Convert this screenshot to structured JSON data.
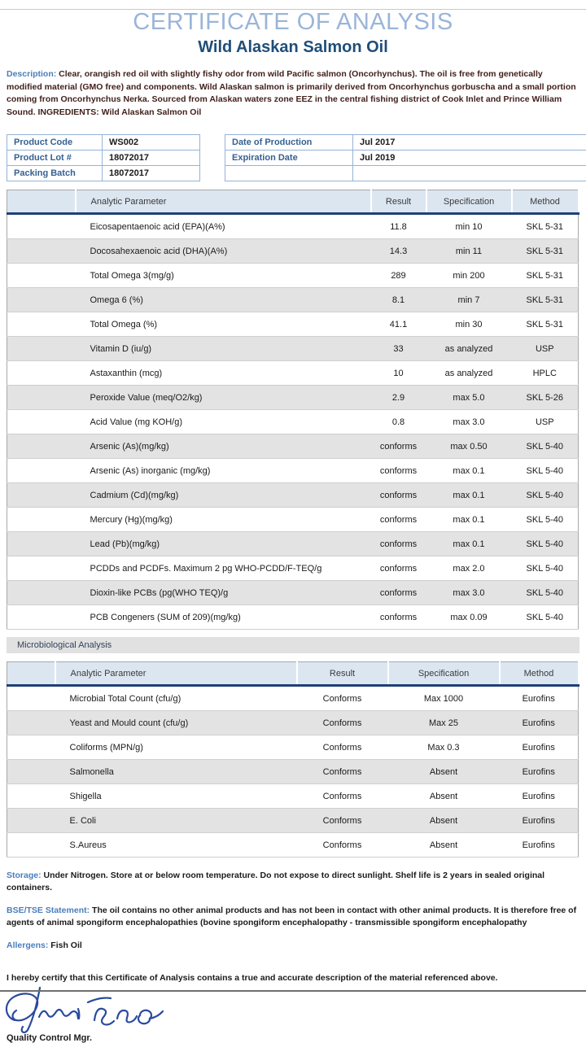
{
  "header": {
    "title": "CERTIFICATE OF ANALYSIS",
    "subtitle": "Wild Alaskan Salmon Oil"
  },
  "description": {
    "label": "Description:",
    "text": " Clear, orangish red oil with slightly fishy odor from wild Pacific salmon (Oncorhynchus). The oil is free from genetically modified material (GMO free) and components. Wild Alaskan salmon is primarily derived from Oncorhynchus gorbuscha and a small portion coming from Oncorhynchus Nerka. Sourced from Alaskan waters zone EEZ in the central fishing district of Cook Inlet and Prince William Sound. INGREDIENTS: Wild Alaskan Salmon Oil"
  },
  "product_info": {
    "left_rows": [
      {
        "label": "Product Code",
        "value": "WS002"
      },
      {
        "label": "Product Lot #",
        "value": "18072017"
      },
      {
        "label": "Packing Batch",
        "value": "18072017"
      }
    ],
    "right_rows": [
      {
        "label": "Date of Production",
        "value": "Jul 2017"
      },
      {
        "label": "Expiration Date",
        "value": "Jul 2019"
      },
      {
        "label": "",
        "value": ""
      }
    ]
  },
  "analysis_table": {
    "headers": [
      "Analytic Parameter",
      "Result",
      "Specification",
      "Method"
    ],
    "rows": [
      [
        "Eicosapentaenoic acid (EPA)(A%)",
        "11.8",
        "min 10",
        "SKL 5-31"
      ],
      [
        "Docosahexaenoic acid (DHA)(A%)",
        "14.3",
        "min 11",
        "SKL 5-31"
      ],
      [
        "Total Omega 3(mg/g)",
        "289",
        "min 200",
        "SKL 5-31"
      ],
      [
        "Omega 6 (%)",
        "8.1",
        "min 7",
        "SKL 5-31"
      ],
      [
        "Total Omega (%)",
        "41.1",
        "min 30",
        "SKL 5-31"
      ],
      [
        "Vitamin D (iu/g)",
        "33",
        "as analyzed",
        "USP"
      ],
      [
        "Astaxanthin (mcg)",
        "10",
        "as analyzed",
        "HPLC"
      ],
      [
        "Peroxide Value (meq/O2/kg)",
        "2.9",
        "max 5.0",
        "SKL 5-26"
      ],
      [
        "Acid Value (mg KOH/g)",
        "0.8",
        "max 3.0",
        "USP"
      ],
      [
        "Arsenic (As)(mg/kg)",
        "conforms",
        "max 0.50",
        "SKL 5-40"
      ],
      [
        "Arsenic (As) inorganic (mg/kg)",
        "conforms",
        "max 0.1",
        "SKL 5-40"
      ],
      [
        "Cadmium (Cd)(mg/kg)",
        "conforms",
        "max 0.1",
        "SKL 5-40"
      ],
      [
        "Mercury (Hg)(mg/kg)",
        "conforms",
        "max 0.1",
        "SKL 5-40"
      ],
      [
        "Lead (Pb)(mg/kg)",
        "conforms",
        "max 0.1",
        "SKL 5-40"
      ],
      [
        "PCDDs and PCDFs. Maximum 2 pg WHO-PCDD/F-TEQ/g",
        "conforms",
        "max 2.0",
        "SKL 5-40"
      ],
      [
        "Dioxin-like PCBs (pg(WHO TEQ)/g",
        "conforms",
        "max 3.0",
        "SKL 5-40"
      ],
      [
        "PCB Congeners (SUM of 209)(mg/kg)",
        "conforms",
        "max 0.09",
        "SKL 5-40"
      ]
    ]
  },
  "micro_section": {
    "label": "Microbiological Analysis"
  },
  "micro_table": {
    "headers": [
      "Analytic Parameter",
      "Result",
      "Specification",
      "Method"
    ],
    "rows": [
      [
        "Microbial Total Count (cfu/g)",
        "Conforms",
        "Max 1000",
        "Eurofins"
      ],
      [
        "Yeast and Mould count (cfu/g)",
        "Conforms",
        "Max 25",
        "Eurofins"
      ],
      [
        "Coliforms (MPN/g)",
        "Conforms",
        "Max 0.3",
        "Eurofins"
      ],
      [
        "Salmonella",
        "Conforms",
        "Absent",
        "Eurofins"
      ],
      [
        "Shigella",
        "Conforms",
        "Absent",
        "Eurofins"
      ],
      [
        "E. Coli",
        "Conforms",
        "Absent",
        "Eurofins"
      ],
      [
        "S.Aureus",
        "Conforms",
        "Absent",
        "Eurofins"
      ]
    ]
  },
  "statements": {
    "storage_label": "Storage:",
    "storage_text": " Under Nitrogen. Store at or below room temperature. Do not expose to direct sunlight. Shelf life is 2 years in sealed original containers.",
    "bse_label": "BSE/TSE Statement:",
    "bse_text": " The oil contains no other animal products and has not been in contact with other animal products. It is therefore free of agents of animal spongiform encephalopathies (bovine spongiform encephalopathy -  transmissible spongiform encephalopathy",
    "allergens_label": "Allergens:",
    "allergens_text": " Fish Oil",
    "certify_text": "I hereby certify that this Certificate of Analysis contains a true and accurate description of the material referenced above."
  },
  "signature": {
    "role": "Quality Control Mgr."
  },
  "colors": {
    "title_blue": "#9ab5d8",
    "subtitle_blue": "#1f4e79",
    "label_blue": "#4a7ebb",
    "description_maroon": "#42211d",
    "header_bg": "#dce6f1",
    "header_rule_navy": "#1f4077",
    "stripe_gray": "#e3e3e3",
    "product_border_blue": "#95b3d7",
    "signature_ink": "#2a4a9e"
  }
}
